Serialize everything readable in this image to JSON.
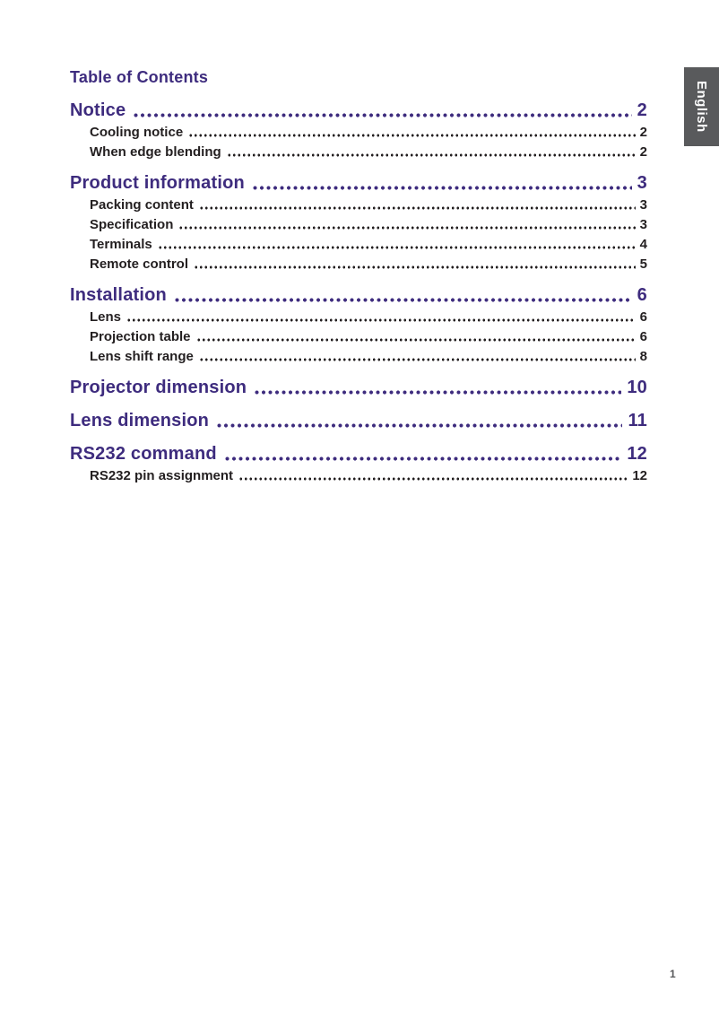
{
  "page": {
    "language_tab": "English",
    "footer_page_number": "1"
  },
  "toc": {
    "title": "Table of Contents",
    "entries": [
      {
        "label": "Notice",
        "page": "2",
        "level": 1
      },
      {
        "label": "Cooling notice",
        "page": "2",
        "level": 2
      },
      {
        "label": "When edge blending",
        "page": "2",
        "level": 2
      },
      {
        "label": "Product information",
        "page": "3",
        "level": 1
      },
      {
        "label": "Packing content",
        "page": "3",
        "level": 2
      },
      {
        "label": "Specification",
        "page": "3",
        "level": 2
      },
      {
        "label": "Terminals",
        "page": "4",
        "level": 2
      },
      {
        "label": "Remote control",
        "page": "5",
        "level": 2
      },
      {
        "label": "Installation",
        "page": "6",
        "level": 1
      },
      {
        "label": "Lens",
        "page": "6",
        "level": 2
      },
      {
        "label": "Projection table",
        "page": "6",
        "level": 2
      },
      {
        "label": "Lens shift range",
        "page": "8",
        "level": 2
      },
      {
        "label": "Projector dimension",
        "page": "10",
        "level": 1
      },
      {
        "label": "Lens dimension",
        "page": "11",
        "level": 1
      },
      {
        "label": "RS232 command",
        "page": "12",
        "level": 1
      },
      {
        "label": "RS232 pin assignment",
        "page": "12",
        "level": 2
      }
    ]
  },
  "colors": {
    "accent": "#3E2C7E",
    "text": "#231F20",
    "tab-bg": "#595A5C",
    "muted": "#58595B"
  }
}
